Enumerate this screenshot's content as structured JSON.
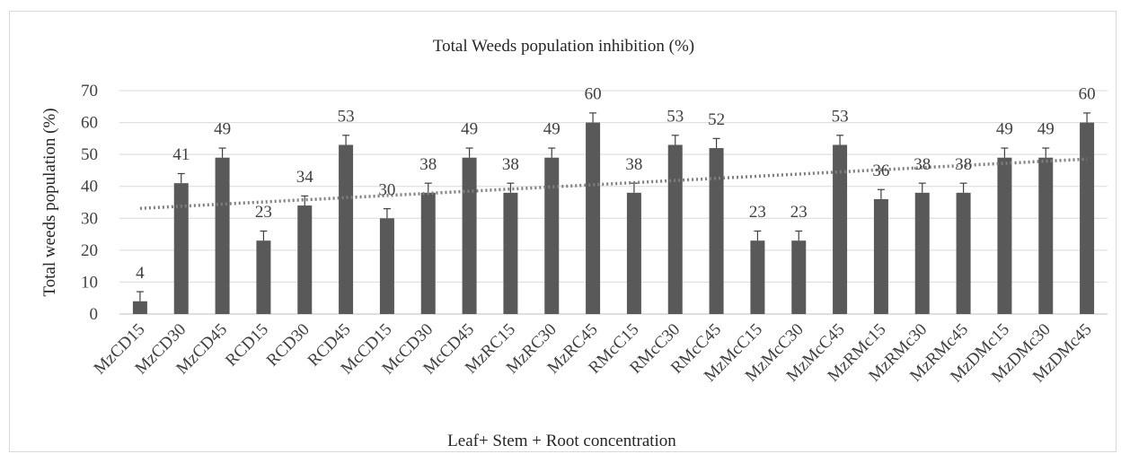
{
  "chart_data": {
    "type": "bar",
    "title": "Total Weeds population inhibition (%)",
    "xlabel": "Leaf+ Stem + Root concentration",
    "ylabel": "Total weeds population (%)",
    "ylim": [
      0,
      70
    ],
    "yticks": [
      "0",
      "10",
      "20",
      "30",
      "40",
      "50",
      "60",
      "70"
    ],
    "grid": "horizontal",
    "bar_color": "#595959",
    "trendline": {
      "type": "linear",
      "style": "dotted",
      "color": "#7f7f7f"
    },
    "error_bars": true,
    "categories": [
      "MzCD15",
      "MzCD30",
      "MzCD45",
      "RCD15",
      "RCD30",
      "RCD45",
      "McCD15",
      "McCD30",
      "McCD45",
      "MzRC15",
      "MzRC30",
      "MzRC45",
      "RMcC15",
      "RMcC30",
      "RMcC45",
      "MzMcC15",
      "MzMcC30",
      "MzMcC45",
      "MzRMc15",
      "MzRMc30",
      "MzRMc45",
      "MzDMc15",
      "MzDMc30",
      "MzDMc45"
    ],
    "values": [
      4,
      41,
      49,
      23,
      34,
      53,
      30,
      38,
      49,
      38,
      49,
      60,
      38,
      53,
      52,
      23,
      23,
      53,
      36,
      38,
      38,
      49,
      49,
      60
    ],
    "data_labels": [
      "4",
      "41",
      "49",
      "23",
      "34",
      "53",
      "30",
      "38",
      "49",
      "38",
      "49",
      "60",
      "38",
      "53",
      "52",
      "23",
      "23",
      "53",
      "36",
      "38",
      "38",
      "49",
      "49",
      "60"
    ]
  }
}
